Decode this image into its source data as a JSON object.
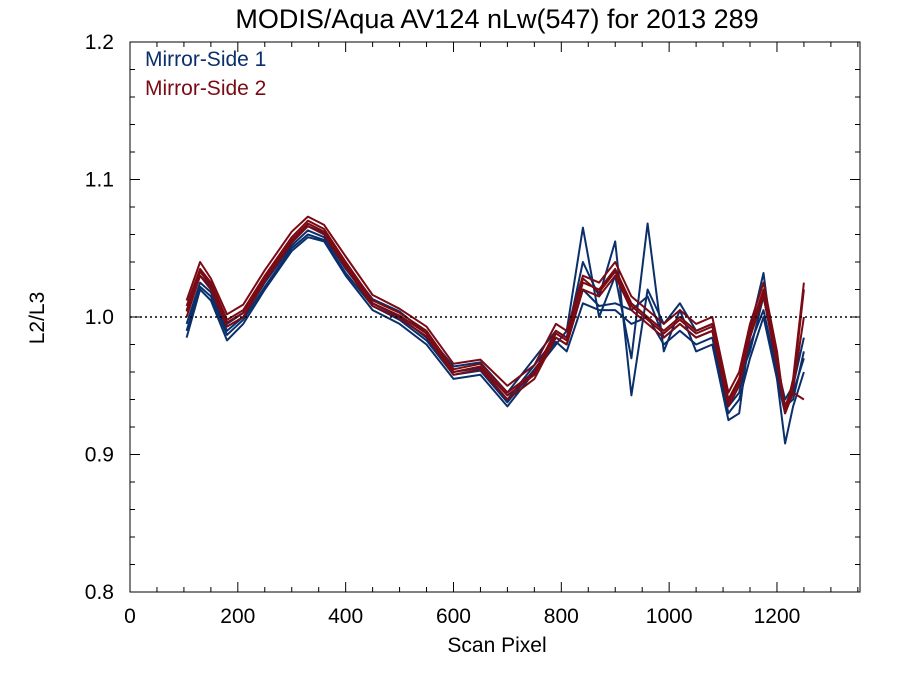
{
  "chart_data": {
    "type": "line",
    "title": "MODIS/Aqua AV124 nLw(547) for 2013 289",
    "xlabel": "Scan Pixel",
    "ylabel": "L2/L3",
    "xlim": [
      0,
      1354
    ],
    "ylim": [
      0.8,
      1.2
    ],
    "x_ticks": [
      0,
      200,
      400,
      600,
      800,
      1000,
      1200
    ],
    "x_tick_labels": [
      "0",
      "200",
      "400",
      "600",
      "800",
      "1000",
      "1200"
    ],
    "y_ticks": [
      0.8,
      0.9,
      1.0,
      1.1,
      1.2
    ],
    "y_tick_labels": [
      "0.8",
      "0.9",
      "1.0",
      "1.1",
      "1.2"
    ],
    "reference_line": {
      "y": 1.0,
      "style": "dotted"
    },
    "legend_position": "top-left",
    "grid": false,
    "colors": {
      "mirror_side_1": "#0a2f6b",
      "mirror_side_2": "#7a0a14"
    },
    "x": [
      105,
      130,
      150,
      180,
      210,
      250,
      300,
      330,
      360,
      400,
      450,
      500,
      550,
      600,
      650,
      700,
      750,
      790,
      810,
      840,
      870,
      900,
      930,
      960,
      990,
      1020,
      1050,
      1080,
      1110,
      1130,
      1150,
      1175,
      1200,
      1215,
      1230,
      1250
    ],
    "series": [
      {
        "name": "Mirror-Side 1",
        "values": [
          0.995,
          1.025,
          1.018,
          0.99,
          1.0,
          1.025,
          1.052,
          1.063,
          1.058,
          1.035,
          1.01,
          1.0,
          0.985,
          0.96,
          0.963,
          0.94,
          0.965,
          0.985,
          0.98,
          1.02,
          1.008,
          1.01,
          1.005,
          1.015,
          0.985,
          0.995,
          0.985,
          0.99,
          0.935,
          0.945,
          0.98,
          1.005,
          0.96,
          0.935,
          0.94,
          0.975
        ],
        "lines": [
          [
            0.995,
            1.025,
            1.018,
            0.99,
            1.0,
            1.025,
            1.052,
            1.063,
            1.058,
            1.035,
            1.01,
            1.0,
            0.985,
            0.96,
            0.963,
            0.94,
            0.965,
            0.985,
            0.98,
            1.02,
            1.008,
            1.01,
            1.005,
            1.015,
            0.985,
            0.995,
            0.985,
            0.99,
            0.935,
            0.945,
            0.98,
            1.005,
            0.96,
            0.935,
            0.94,
            0.975
          ],
          [
            0.985,
            1.02,
            1.012,
            0.983,
            0.995,
            1.02,
            1.048,
            1.058,
            1.055,
            1.03,
            1.005,
            0.995,
            0.98,
            0.955,
            0.958,
            0.935,
            0.96,
            0.98,
            0.99,
            1.065,
            1.0,
            1.03,
            0.97,
            1.068,
            0.975,
            1.005,
            0.975,
            0.98,
            0.925,
            0.93,
            0.99,
            1.032,
            0.955,
            0.908,
            0.935,
            0.96
          ],
          [
            1.005,
            1.03,
            1.022,
            0.995,
            1.003,
            1.028,
            1.055,
            1.066,
            1.061,
            1.038,
            1.013,
            1.004,
            0.988,
            0.964,
            0.967,
            0.945,
            0.97,
            0.99,
            0.985,
            1.04,
            1.015,
            1.055,
            0.943,
            1.02,
            0.995,
            1.01,
            0.99,
            0.995,
            0.94,
            0.955,
            0.975,
            1.015,
            0.965,
            0.94,
            0.95,
            0.985
          ],
          [
            0.99,
            1.022,
            1.015,
            0.987,
            0.998,
            1.022,
            1.05,
            1.06,
            1.056,
            1.032,
            1.008,
            0.998,
            0.983,
            0.958,
            0.961,
            0.938,
            0.962,
            0.982,
            0.975,
            1.01,
            1.005,
            1.005,
            0.995,
            1.0,
            0.98,
            0.99,
            0.98,
            0.985,
            0.93,
            0.94,
            0.97,
            1.0,
            0.955,
            0.93,
            0.945,
            0.97
          ]
        ]
      },
      {
        "name": "Mirror-Side 2",
        "values": [
          1.008,
          1.035,
          1.025,
          0.998,
          1.005,
          1.03,
          1.058,
          1.07,
          1.064,
          1.04,
          1.012,
          1.003,
          0.99,
          0.962,
          0.966,
          0.945,
          0.96,
          0.99,
          0.985,
          1.025,
          1.02,
          1.035,
          1.01,
          1.0,
          0.99,
          1.0,
          0.99,
          0.995,
          0.94,
          0.955,
          0.99,
          1.02,
          0.97,
          0.935,
          0.95,
          1.02
        ],
        "lines": [
          [
            1.008,
            1.035,
            1.025,
            0.998,
            1.005,
            1.03,
            1.058,
            1.07,
            1.064,
            1.04,
            1.012,
            1.003,
            0.99,
            0.962,
            0.966,
            0.945,
            0.96,
            0.99,
            0.985,
            1.025,
            1.02,
            1.035,
            1.01,
            1.0,
            0.99,
            1.0,
            0.99,
            0.995,
            0.94,
            0.955,
            0.99,
            1.02,
            0.97,
            0.935,
            0.95,
            1.02
          ],
          [
            1.012,
            1.04,
            1.028,
            1.002,
            1.009,
            1.034,
            1.062,
            1.073,
            1.067,
            1.044,
            1.016,
            1.006,
            0.993,
            0.966,
            0.969,
            0.95,
            0.965,
            0.995,
            0.99,
            1.03,
            1.025,
            1.04,
            1.015,
            1.005,
            0.995,
            1.005,
            0.995,
            1.0,
            0.945,
            0.96,
            0.995,
            1.025,
            0.975,
            0.93,
            0.955,
            1.025
          ],
          [
            1.0,
            1.03,
            1.02,
            0.993,
            1.0,
            1.026,
            1.054,
            1.066,
            1.06,
            1.036,
            1.008,
            0.999,
            0.986,
            0.958,
            0.962,
            0.94,
            0.955,
            0.985,
            0.98,
            1.02,
            1.015,
            1.03,
            1.005,
            0.995,
            0.985,
            0.995,
            0.985,
            0.99,
            0.935,
            0.95,
            0.985,
            1.015,
            0.965,
            0.93,
            0.945,
            0.94
          ],
          [
            1.004,
            1.033,
            1.023,
            0.996,
            1.003,
            1.028,
            1.056,
            1.068,
            1.062,
            1.038,
            1.01,
            1.001,
            0.988,
            0.96,
            0.964,
            0.943,
            0.958,
            0.988,
            0.983,
            1.028,
            1.018,
            1.033,
            1.008,
            0.998,
            0.988,
            0.998,
            0.988,
            0.993,
            0.938,
            0.953,
            0.988,
            1.018,
            0.968,
            0.933,
            0.948,
            1.0
          ]
        ]
      }
    ]
  }
}
